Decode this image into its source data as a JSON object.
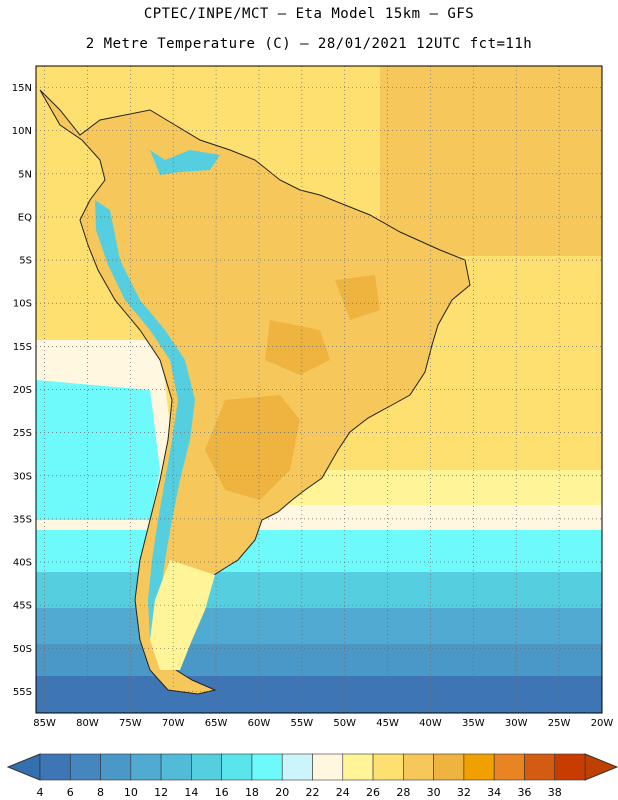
{
  "header": {
    "line1": "CPTEC/INPE/MCT –  Eta Model 15km – GFS",
    "line2": "2 Metre Temperature (C) – 28/01/2021 12UTC fct=11h"
  },
  "axes": {
    "lat_labels": [
      "15N",
      "10N",
      "5N",
      "EQ",
      "5S",
      "10S",
      "15S",
      "20S",
      "25S",
      "30S",
      "35S",
      "40S",
      "45S",
      "50S",
      "55S"
    ],
    "lon_labels": [
      "85W",
      "80W",
      "75W",
      "70W",
      "65W",
      "60W",
      "55W",
      "50W",
      "45W",
      "40W",
      "35W",
      "30W",
      "25W",
      "20W"
    ],
    "lat_range": [
      17.5,
      -57.5
    ],
    "lon_range": [
      -86,
      -20
    ],
    "grid": "dotted"
  },
  "colorbar": {
    "labels": [
      "4",
      "6",
      "8",
      "10",
      "12",
      "14",
      "16",
      "18",
      "20",
      "22",
      "24",
      "26",
      "28",
      "30",
      "32",
      "34",
      "36",
      "38"
    ],
    "colors": [
      "#3d75b5",
      "#4586be",
      "#4a98c8",
      "#50aad2",
      "#52bcd8",
      "#55cfe0",
      "#5ae5ec",
      "#6ef9fa",
      "#ccf4fb",
      "#fff7e0",
      "#fff497",
      "#fde06f",
      "#f6c85b",
      "#efb43f",
      "#f0a000",
      "#e88424",
      "#d45c12",
      "#c83c00"
    ],
    "low_arrow_color": "#3470b0",
    "high_arrow_color": "#c04000"
  },
  "colors": {
    "ocean_warm": "#fde06f",
    "ocean_warm_alt": "#f6c85b",
    "land": "#f6c85b",
    "land_hot": "#efb43f",
    "ocean_mild": "#fff497",
    "ocean_cool": "#fff7e0",
    "andes_cold": "#55cfe0",
    "south_ocean_1": "#6ef9fa",
    "south_ocean_2": "#55cfe0",
    "south_ocean_3": "#50aad2",
    "south_ocean_4": "#4a98c8",
    "south_ocean_5": "#3d75b5"
  }
}
